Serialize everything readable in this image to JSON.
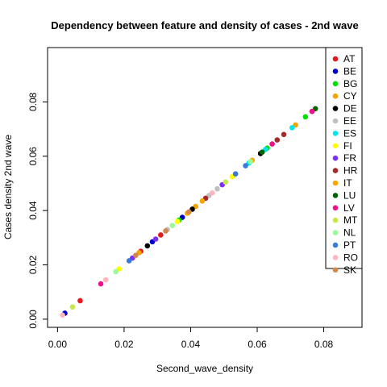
{
  "chart_data": {
    "type": "scatter",
    "title": "Dependency between feature and density of cases -  2nd wave",
    "xlabel": "Second_wave_density",
    "ylabel": "Cases density  2nd wave",
    "xlim": [
      -0.003,
      0.0915
    ],
    "ylim": [
      -0.003,
      0.1
    ],
    "xticks": [
      0.0,
      0.02,
      0.04,
      0.06,
      0.08
    ],
    "xtick_labels": [
      "0.00",
      "0.02",
      "0.04",
      "0.06",
      "0.08"
    ],
    "yticks": [
      0.0,
      0.02,
      0.04,
      0.06,
      0.08
    ],
    "ytick_labels": [
      "0.00",
      "0.02",
      "0.04",
      "0.06",
      "0.08"
    ],
    "grid": false,
    "legend_position": "top-right",
    "series": [
      {
        "name": "AT",
        "color": "#e41a1c",
        "x": [
          0.0068,
          0.031,
          0.025
        ],
        "y": [
          0.0068,
          0.031,
          0.025
        ]
      },
      {
        "name": "BE",
        "color": "#0000cd",
        "x": [
          0.0022,
          0.0285,
          0.0375
        ],
        "y": [
          0.0022,
          0.0285,
          0.0375
        ]
      },
      {
        "name": "BG",
        "color": "#00e000",
        "x": [
          0.0745,
          0.063,
          0.0365
        ],
        "y": [
          0.0745,
          0.063,
          0.0365
        ]
      },
      {
        "name": "CY",
        "color": "#f4a300",
        "x": [
          0.0415,
          0.0245,
          0.0715
        ],
        "y": [
          0.0415,
          0.0245,
          0.0715
        ]
      },
      {
        "name": "DE",
        "color": "#000000",
        "x": [
          0.061,
          0.0405,
          0.027
        ],
        "y": [
          0.061,
          0.0405,
          0.027
        ]
      },
      {
        "name": "EE",
        "color": "#c0c0c0",
        "x": [
          0.048,
          0.033,
          0.0455
        ],
        "y": [
          0.048,
          0.033,
          0.0455
        ]
      },
      {
        "name": "ES",
        "color": "#00e5ee",
        "x": [
          0.0705,
          0.0575,
          0.0625
        ],
        "y": [
          0.0705,
          0.0575,
          0.0625
        ]
      },
      {
        "name": "FI",
        "color": "#ffff00",
        "x": [
          0.0185,
          0.0525,
          0.036
        ],
        "y": [
          0.0185,
          0.0525,
          0.036
        ]
      },
      {
        "name": "FR",
        "color": "#7b2ff7",
        "x": [
          0.0295,
          0.0495,
          0.0225
        ],
        "y": [
          0.0295,
          0.0495,
          0.0225
        ]
      },
      {
        "name": "HR",
        "color": "#a52a2a",
        "x": [
          0.068,
          0.066,
          0.0445
        ],
        "y": [
          0.068,
          0.066,
          0.0445
        ]
      },
      {
        "name": "IT",
        "color": "#f7a800",
        "x": [
          0.0435,
          0.039,
          0.0585
        ],
        "y": [
          0.0435,
          0.039,
          0.0585
        ]
      },
      {
        "name": "LU",
        "color": "#006400",
        "x": [
          0.0775,
          0.0765,
          0.0615
        ],
        "y": [
          0.0775,
          0.0765,
          0.0615
        ]
      },
      {
        "name": "LV",
        "color": "#ee1289",
        "x": [
          0.013,
          0.0645,
          0.0765
        ],
        "y": [
          0.013,
          0.0645,
          0.0765
        ]
      },
      {
        "name": "MT",
        "color": "#c5e84a",
        "x": [
          0.0855,
          0.0045,
          0.0505
        ],
        "y": [
          0.0855,
          0.0045,
          0.0505
        ]
      },
      {
        "name": "NL",
        "color": "#98fb98",
        "x": [
          0.0175,
          0.0345,
          0.058
        ],
        "y": [
          0.0175,
          0.0345,
          0.058
        ]
      },
      {
        "name": "PT",
        "color": "#3a7bd5",
        "x": [
          0.0535,
          0.0565,
          0.0215
        ],
        "y": [
          0.0535,
          0.0565,
          0.0215
        ]
      },
      {
        "name": "RO",
        "color": "#ffb6c1",
        "x": [
          0.0145,
          0.0465,
          0.0015
        ],
        "y": [
          0.0145,
          0.0465,
          0.0015
        ]
      },
      {
        "name": "SK",
        "color": "#d2874b",
        "x": [
          0.0395,
          0.0235,
          0.0325
        ],
        "y": [
          0.0395,
          0.0235,
          0.0325
        ]
      }
    ]
  }
}
